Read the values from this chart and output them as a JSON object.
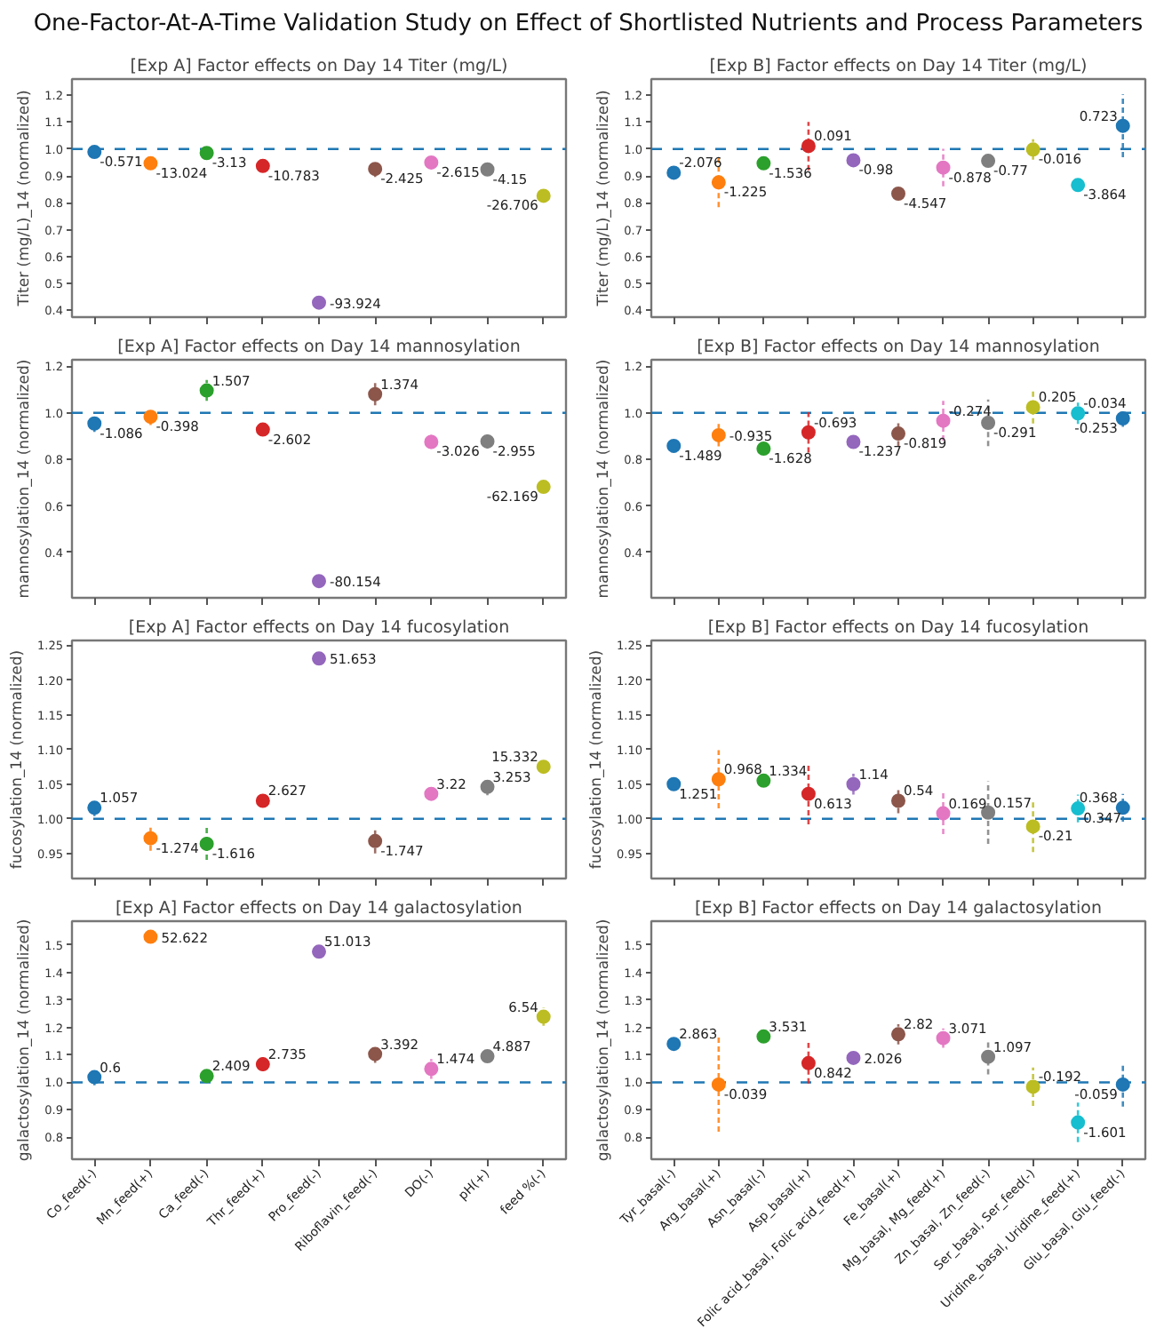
{
  "chart_data": [
    {
      "type": "scatter",
      "title": "[Exp A] Factor effects on Day 14 Titer (mg/L)",
      "ylabel": "Titer (mg/L)_14 (normalized)",
      "tick_labels": "y",
      "marker": "circle",
      "categories": [
        "Co_feed(-)",
        "Mn_feed(+)",
        "Ca_feed(-)",
        "Thr_feed(+)",
        "Pro_feed(-)",
        "Riboflavin_feed(-)",
        "DO(-)",
        "pH(+)",
        "feed %(-)"
      ],
      "values": [
        0.989,
        0.947,
        0.985,
        0.937,
        0.429,
        0.926,
        0.95,
        0.924,
        0.826
      ],
      "errors": [
        0.006,
        0.006,
        0.01,
        0.008,
        0.005,
        0.03,
        0.015,
        0.015,
        0.006
      ],
      "colors": [
        "#1f77b4",
        "#ff7f0e",
        "#2ca02c",
        "#d62728",
        "#9467bd",
        "#8c564b",
        "#e377c2",
        "#7f7f7f",
        "#bcbd22"
      ],
      "ylim": [
        0.375,
        1.26
      ],
      "yticks": [
        0.4,
        0.5,
        0.6,
        0.7,
        0.8,
        0.9,
        {
          "value": 1.0,
          "label": "1.0"
        },
        1.1,
        1.2
      ],
      "ref_lines": [
        {
          "axis": "y",
          "value": 1.0,
          "color": "#1f77b4",
          "line_style": "dashed"
        }
      ],
      "annotations": [
        "One-Factor-At-A-Time Validation Study on Effect of Shortlisted Nutrients and Process Parameters",
        {
          "text": "-0.571",
          "x": "Co_feed(-)",
          "y": 0.989
        },
        {
          "text": "-13.024",
          "x": "Mn_feed(+)",
          "y": 0.947
        },
        {
          "text": "-3.13",
          "x": "Ca_feed(-)",
          "y": 0.985
        },
        {
          "text": "-10.783",
          "x": "Thr_feed(+)",
          "y": 0.937
        },
        {
          "text": "-93.924",
          "x": "Pro_feed(-)",
          "y": 0.429
        },
        {
          "text": "-2.425",
          "x": "Riboflavin_feed(-)",
          "y": 0.926
        },
        {
          "text": "-2.615",
          "x": "DO(-)",
          "y": 0.95
        },
        {
          "text": "-4.15",
          "x": "pH(+)",
          "y": 0.924
        },
        {
          "text": "-26.706",
          "x": "feed %(-)",
          "y": 0.826
        }
      ]
    },
    {
      "type": "scatter",
      "title": "[Exp B] Factor effects on Day 14 Titer (mg/L)",
      "ylabel": "Titer (mg/L)_14 (normalized)",
      "tick_labels": "y",
      "marker": "circle",
      "categories": [
        "Tyr_basal(-)",
        "Arg_basal(+)",
        "Asn_basal(-)",
        "Asp_basal(+)",
        "Folic acid_basal, Folic acid_feed(+)",
        "Fe_basal(+)",
        "Mg_basal, Mg_feed(+)",
        "Zn_basal, Zn_feed(-)",
        "Ser_basal, Ser_feed(-)",
        "Uridine_basal, Uridine_feed(+)",
        "Glu_basal, Glu_feed(-)"
      ],
      "values": [
        0.912,
        0.876,
        0.947,
        1.011,
        0.958,
        0.834,
        0.931,
        0.956,
        0.998,
        0.866,
        1.086
      ],
      "errors": [
        0.015,
        0.092,
        0.008,
        0.09,
        0.01,
        0.006,
        0.07,
        0.02,
        0.038,
        0.006,
        0.117
      ],
      "colors": [
        "#1f77b4",
        "#ff7f0e",
        "#2ca02c",
        "#d62728",
        "#9467bd",
        "#8c564b",
        "#e377c2",
        "#7f7f7f",
        "#bcbd22",
        "#17becf",
        "#1f77b4"
      ],
      "ylim": [
        0.375,
        1.26
      ],
      "yticks": [
        0.4,
        0.5,
        0.6,
        0.7,
        0.8,
        0.9,
        {
          "value": 1.0,
          "label": "1.0"
        },
        1.1,
        1.2
      ],
      "ref_lines": [
        {
          "axis": "y",
          "value": 1.0,
          "color": "#1f77b4",
          "line_style": "dashed"
        }
      ],
      "annotations": [
        {
          "text": "-2.076",
          "x": "Tyr_basal(-)",
          "y": 0.912
        },
        {
          "text": "-1.225",
          "x": "Arg_basal(+)",
          "y": 0.876
        },
        {
          "text": "-1.536",
          "x": "Asn_basal(-)",
          "y": 0.947
        },
        {
          "text": "0.091",
          "x": "Asp_basal(+)",
          "y": 1.011
        },
        {
          "text": "-0.98",
          "x": "Folic acid_basal, Folic acid_feed(+)",
          "y": 0.958
        },
        {
          "text": "-4.547",
          "x": "Fe_basal(+)",
          "y": 0.834
        },
        {
          "text": "-0.878",
          "x": "Mg_basal, Mg_feed(+)",
          "y": 0.931
        },
        {
          "text": "-0.77",
          "x": "Zn_basal, Zn_feed(-)",
          "y": 0.956
        },
        {
          "text": "-0.016",
          "x": "Ser_basal, Ser_feed(-)",
          "y": 0.998
        },
        {
          "text": "-3.864",
          "x": "Uridine_basal, Uridine_feed(+)",
          "y": 0.866
        },
        {
          "text": "0.723",
          "x": "Glu_basal, Glu_feed(-)",
          "y": 1.086
        }
      ]
    },
    {
      "type": "scatter",
      "title": "[Exp A] Factor effects on Day 14 mannosylation",
      "ylabel": "mannosylation_14 (normalized)",
      "tick_labels": "y",
      "marker": "circle",
      "categories": [
        "Co_feed(-)",
        "Mn_feed(+)",
        "Ca_feed(-)",
        "Thr_feed(+)",
        "Pro_feed(-)",
        "Riboflavin_feed(-)",
        "DO(-)",
        "pH(+)",
        "feed %(-)"
      ],
      "values": [
        0.954,
        0.983,
        1.096,
        0.928,
        0.277,
        1.08,
        0.875,
        0.877,
        0.682
      ],
      "errors": [
        0.036,
        0.036,
        0.045,
        0.025,
        0.008,
        0.048,
        0.03,
        0.03,
        0.008
      ],
      "colors": [
        "#1f77b4",
        "#ff7f0e",
        "#2ca02c",
        "#d62728",
        "#9467bd",
        "#8c564b",
        "#e377c2",
        "#7f7f7f",
        "#bcbd22"
      ],
      "ylim": [
        0.205,
        1.228
      ],
      "yticks": [
        0.4,
        0.6,
        0.8,
        {
          "value": 1.0,
          "label": "1.0"
        },
        1.2
      ],
      "ref_lines": [
        {
          "axis": "y",
          "value": 1.0,
          "color": "#1f77b4",
          "line_style": "dashed"
        }
      ],
      "annotations": [
        {
          "text": "-1.086",
          "x": "Co_feed(-)",
          "y": 0.954
        },
        {
          "text": "-0.398",
          "x": "Mn_feed(+)",
          "y": 0.983
        },
        {
          "text": "1.507",
          "x": "Ca_feed(-)",
          "y": 1.096
        },
        {
          "text": "-2.602",
          "x": "Thr_feed(+)",
          "y": 0.928
        },
        {
          "text": "-80.154",
          "x": "Pro_feed(-)",
          "y": 0.277
        },
        {
          "text": "1.374",
          "x": "Riboflavin_feed(-)",
          "y": 1.08
        },
        {
          "text": "-3.026",
          "x": "DO(-)",
          "y": 0.875
        },
        {
          "text": "-2.955",
          "x": "pH(+)",
          "y": 0.877
        },
        {
          "text": "-62.169",
          "x": "feed %(-)",
          "y": 0.682
        }
      ]
    },
    {
      "type": "scatter",
      "title": "[Exp B] Factor effects on Day 14 mannosylation",
      "ylabel": "mannosylation_14 (normalized)",
      "tick_labels": "y",
      "marker": "circle",
      "categories": [
        "Tyr_basal(-)",
        "Arg_basal(+)",
        "Asn_basal(-)",
        "Asp_basal(+)",
        "Folic acid_basal, Folic acid_feed(+)",
        "Fe_basal(+)",
        "Mg_basal, Mg_feed(+)",
        "Zn_basal, Zn_feed(-)",
        "Ser_basal, Ser_feed(-)",
        "Uridine_basal, Uridine_feed(+)",
        "Glu_basal, Glu_feed(-)"
      ],
      "values": [
        0.858,
        0.904,
        0.846,
        0.916,
        0.875,
        0.911,
        0.966,
        0.957,
        1.024,
        0.998,
        0.976
      ],
      "errors": [
        0.02,
        0.048,
        0.02,
        0.087,
        0.025,
        0.055,
        0.085,
        0.1,
        0.07,
        0.046,
        0.036
      ],
      "colors": [
        "#1f77b4",
        "#ff7f0e",
        "#2ca02c",
        "#d62728",
        "#9467bd",
        "#8c564b",
        "#e377c2",
        "#7f7f7f",
        "#bcbd22",
        "#17becf",
        "#1f77b4"
      ],
      "ylim": [
        0.205,
        1.228
      ],
      "yticks": [
        0.4,
        0.6,
        0.8,
        {
          "value": 1.0,
          "label": "1.0"
        },
        1.2
      ],
      "ref_lines": [
        {
          "axis": "y",
          "value": 1.0,
          "color": "#1f77b4",
          "line_style": "dashed"
        }
      ],
      "annotations": [
        {
          "text": "-1.489",
          "x": "Tyr_basal(-)",
          "y": 0.858
        },
        {
          "text": "-0.935",
          "x": "Arg_basal(+)",
          "y": 0.904
        },
        {
          "text": "-1.628",
          "x": "Asn_basal(-)",
          "y": 0.846
        },
        {
          "text": "-0.693",
          "x": "Asp_basal(+)",
          "y": 0.916
        },
        {
          "text": "-1.237",
          "x": "Folic acid_basal, Folic acid_feed(+)",
          "y": 0.875
        },
        {
          "text": "-0.819",
          "x": "Fe_basal(+)",
          "y": 0.911
        },
        {
          "text": "-0.274",
          "x": "Mg_basal, Mg_feed(+)",
          "y": 0.966
        },
        {
          "text": "-0.291",
          "x": "Zn_basal, Zn_feed(-)",
          "y": 0.957
        },
        {
          "text": "0.205",
          "x": "Ser_basal, Ser_feed(-)",
          "y": 1.024
        },
        {
          "text": "-0.034",
          "x": "Uridine_basal, Uridine_feed(+)",
          "y": 0.998
        },
        {
          "text": "-0.253",
          "x": "Glu_basal, Glu_feed(-)",
          "y": 0.976
        }
      ]
    },
    {
      "type": "scatter",
      "title": "[Exp A] Factor effects on Day 14 fucosylation",
      "ylabel": "fucosylation_14 (normalized)",
      "tick_labels": "y",
      "marker": "circle",
      "categories": [
        "Co_feed(-)",
        "Mn_feed(+)",
        "Ca_feed(-)",
        "Thr_feed(+)",
        "Pro_feed(-)",
        "Riboflavin_feed(-)",
        "DO(-)",
        "pH(+)",
        "feed %(-)"
      ],
      "values": [
        1.016,
        0.972,
        0.964,
        1.026,
        1.231,
        0.968,
        1.036,
        1.046,
        1.075
      ],
      "errors": [
        0.012,
        0.018,
        0.023,
        0.008,
        0.003,
        0.018,
        0.008,
        0.012,
        0.003
      ],
      "colors": [
        "#1f77b4",
        "#ff7f0e",
        "#2ca02c",
        "#d62728",
        "#9467bd",
        "#8c564b",
        "#e377c2",
        "#7f7f7f",
        "#bcbd22"
      ],
      "ylim": [
        0.914,
        1.257
      ],
      "yticks": [
        0.95,
        {
          "value": 1.0,
          "label": "1.00"
        },
        1.05,
        {
          "value": 1.1,
          "label": "1.10"
        },
        1.15,
        {
          "value": 1.2,
          "label": "1.20"
        },
        1.25
      ],
      "ref_lines": [
        {
          "axis": "y",
          "value": 1.0,
          "color": "#1f77b4",
          "line_style": "dashed"
        }
      ],
      "annotations": [
        {
          "text": "1.057",
          "x": "Co_feed(-)",
          "y": 1.016
        },
        {
          "text": "-1.274",
          "x": "Mn_feed(+)",
          "y": 0.972
        },
        {
          "text": "-1.616",
          "x": "Ca_feed(-)",
          "y": 0.964
        },
        {
          "text": "2.627",
          "x": "Thr_feed(+)",
          "y": 1.026
        },
        {
          "text": "51.653",
          "x": "Pro_feed(-)",
          "y": 1.231
        },
        {
          "text": "-1.747",
          "x": "Riboflavin_feed(-)",
          "y": 0.968
        },
        {
          "text": "3.22",
          "x": "DO(-)",
          "y": 1.036
        },
        {
          "text": "3.253",
          "x": "pH(+)",
          "y": 1.046
        },
        {
          "text": "15.332",
          "x": "feed %(-)",
          "y": 1.075
        }
      ]
    },
    {
      "type": "scatter",
      "title": "[Exp B] Factor effects on Day 14 fucosylation",
      "ylabel": "fucosylation_14 (normalized)",
      "tick_labels": "y",
      "marker": "circle",
      "categories": [
        "Tyr_basal(-)",
        "Arg_basal(+)",
        "Asn_basal(-)",
        "Asp_basal(+)",
        "Folic acid_basal, Folic acid_feed(+)",
        "Fe_basal(+)",
        "Mg_basal, Mg_feed(+)",
        "Zn_basal, Zn_feed(-)",
        "Ser_basal, Ser_feed(-)",
        "Uridine_basal, Uridine_feed(+)",
        "Glu_basal, Glu_feed(-)"
      ],
      "values": [
        1.05,
        1.057,
        1.055,
        1.036,
        1.05,
        1.026,
        1.008,
        1.009,
        0.989,
        1.015,
        1.016
      ],
      "errors": [
        0.003,
        0.042,
        0.008,
        0.044,
        0.015,
        0.018,
        0.03,
        0.045,
        0.037,
        0.02,
        0.02
      ],
      "colors": [
        "#1f77b4",
        "#ff7f0e",
        "#2ca02c",
        "#d62728",
        "#9467bd",
        "#8c564b",
        "#e377c2",
        "#7f7f7f",
        "#bcbd22",
        "#17becf",
        "#1f77b4"
      ],
      "ylim": [
        0.914,
        1.257
      ],
      "yticks": [
        0.95,
        {
          "value": 1.0,
          "label": "1.00"
        },
        1.05,
        {
          "value": 1.1,
          "label": "1.10"
        },
        1.15,
        {
          "value": 1.2,
          "label": "1.20"
        },
        1.25
      ],
      "ref_lines": [
        {
          "axis": "y",
          "value": 1.0,
          "color": "#1f77b4",
          "line_style": "dashed"
        }
      ],
      "annotations": [
        {
          "text": "1.251",
          "x": "Tyr_basal(-)",
          "y": 1.05
        },
        {
          "text": "0.968",
          "x": "Arg_basal(+)",
          "y": 1.057
        },
        {
          "text": "1.334",
          "x": "Asn_basal(-)",
          "y": 1.055
        },
        {
          "text": "0.613",
          "x": "Asp_basal(+)",
          "y": 1.036
        },
        {
          "text": "1.14",
          "x": "Folic acid_basal, Folic acid_feed(+)",
          "y": 1.05
        },
        {
          "text": "0.54",
          "x": "Fe_basal(+)",
          "y": 1.026
        },
        {
          "text": "0.169",
          "x": "Mg_basal, Mg_feed(+)",
          "y": 1.008
        },
        {
          "text": "0.157",
          "x": "Zn_basal, Zn_feed(-)",
          "y": 1.009
        },
        {
          "text": "-0.21",
          "x": "Ser_basal, Ser_feed(-)",
          "y": 0.989
        },
        {
          "text": "0.347",
          "x": "Uridine_basal, Uridine_feed(+)",
          "y": 1.015
        },
        {
          "text": "0.368",
          "x": "Glu_basal, Glu_feed(-)",
          "y": 1.016
        }
      ]
    },
    {
      "type": "scatter",
      "title": "[Exp A] Factor effects on Day 14 galactosylation",
      "ylabel": "galactosylation_14 (normalized)",
      "marker": "circle",
      "categories": [
        "Co_feed(-)",
        "Mn_feed(+)",
        "Ca_feed(-)",
        "Thr_feed(+)",
        "Pro_feed(-)",
        "Riboflavin_feed(-)",
        "DO(-)",
        "pH(+)",
        "feed %(-)"
      ],
      "values": [
        1.019,
        1.53,
        1.023,
        1.066,
        1.476,
        1.103,
        1.049,
        1.095,
        1.239
      ],
      "errors": [
        0.03,
        0.008,
        0.008,
        0.026,
        0.008,
        0.032,
        0.036,
        0.01,
        0.033
      ],
      "colors": [
        "#1f77b4",
        "#ff7f0e",
        "#2ca02c",
        "#d62728",
        "#9467bd",
        "#8c564b",
        "#e377c2",
        "#7f7f7f",
        "#bcbd22"
      ],
      "ylim": [
        0.72,
        1.587
      ],
      "yticks": [
        0.8,
        0.9,
        {
          "value": 1.0,
          "label": "1.0"
        },
        1.1,
        1.2,
        1.3,
        1.4,
        1.5
      ],
      "ref_lines": [
        {
          "axis": "y",
          "value": 1.0,
          "color": "#1f77b4",
          "line_style": "dashed"
        }
      ],
      "annotations": [
        {
          "text": "0.6",
          "x": "Co_feed(-)",
          "y": 1.019
        },
        {
          "text": "52.622",
          "x": "Mn_feed(+)",
          "y": 1.53
        },
        {
          "text": "2.409",
          "x": "Ca_feed(-)",
          "y": 1.023
        },
        {
          "text": "2.735",
          "x": "Thr_feed(+)",
          "y": 1.066
        },
        {
          "text": "51.013",
          "x": "Pro_feed(-)",
          "y": 1.476
        },
        {
          "text": "3.392",
          "x": "Riboflavin_feed(-)",
          "y": 1.103
        },
        {
          "text": "1.474",
          "x": "DO(-)",
          "y": 1.049
        },
        {
          "text": "4.887",
          "x": "pH(+)",
          "y": 1.095
        },
        {
          "text": "6.54",
          "x": "feed %(-)",
          "y": 1.239
        }
      ]
    },
    {
      "type": "scatter",
      "title": "[Exp B] Factor effects on Day 14 galactosylation",
      "ylabel": "galactosylation_14 (normalized)",
      "marker": "circle",
      "categories": [
        "Tyr_basal(-)",
        "Arg_basal(+)",
        "Asn_basal(-)",
        "Asp_basal(+)",
        "Folic acid_basal, Folic acid_feed(+)",
        "Fe_basal(+)",
        "Mg_basal, Mg_feed(+)",
        "Zn_basal, Zn_feed(-)",
        "Ser_basal, Ser_feed(-)",
        "Uridine_basal, Uridine_feed(+)",
        "Glu_basal, Glu_feed(-)"
      ],
      "values": [
        1.14,
        0.992,
        1.167,
        1.07,
        1.089,
        1.175,
        1.161,
        1.093,
        0.984,
        0.854,
        0.992
      ],
      "errors": [
        0.01,
        0.172,
        0.008,
        0.074,
        0.008,
        0.037,
        0.035,
        0.064,
        0.07,
        0.072,
        0.08
      ],
      "colors": [
        "#1f77b4",
        "#ff7f0e",
        "#2ca02c",
        "#d62728",
        "#9467bd",
        "#8c564b",
        "#e377c2",
        "#7f7f7f",
        "#bcbd22",
        "#17becf",
        "#1f77b4"
      ],
      "ylim": [
        0.72,
        1.587
      ],
      "yticks": [
        0.8,
        0.9,
        {
          "value": 1.0,
          "label": "1.0"
        },
        1.1,
        1.2,
        1.3,
        1.4,
        1.5
      ],
      "ref_lines": [
        {
          "axis": "y",
          "value": 1.0,
          "color": "#1f77b4",
          "line_style": "dashed"
        }
      ],
      "annotations": [
        {
          "text": "2.863",
          "x": "Tyr_basal(-)",
          "y": 1.14
        },
        {
          "text": "-0.039",
          "x": "Arg_basal(+)",
          "y": 0.992
        },
        {
          "text": "3.531",
          "x": "Asn_basal(-)",
          "y": 1.167
        },
        {
          "text": "0.842",
          "x": "Asp_basal(+)",
          "y": 1.07
        },
        {
          "text": "2.026",
          "x": "Folic acid_basal, Folic acid_feed(+)",
          "y": 1.089
        },
        {
          "text": "2.82",
          "x": "Fe_basal(+)",
          "y": 1.175
        },
        {
          "text": "3.071",
          "x": "Mg_basal, Mg_feed(+)",
          "y": 1.161
        },
        {
          "text": "1.097",
          "x": "Zn_basal, Zn_feed(-)",
          "y": 1.093
        },
        {
          "text": "-0.192",
          "x": "Ser_basal, Ser_feed(-)",
          "y": 0.984
        },
        {
          "text": "-1.601",
          "x": "Uridine_basal, Uridine_feed(+)",
          "y": 0.854
        },
        {
          "text": "-0.059",
          "x": "Glu_basal, Glu_feed(-)",
          "y": 0.992
        }
      ]
    }
  ]
}
